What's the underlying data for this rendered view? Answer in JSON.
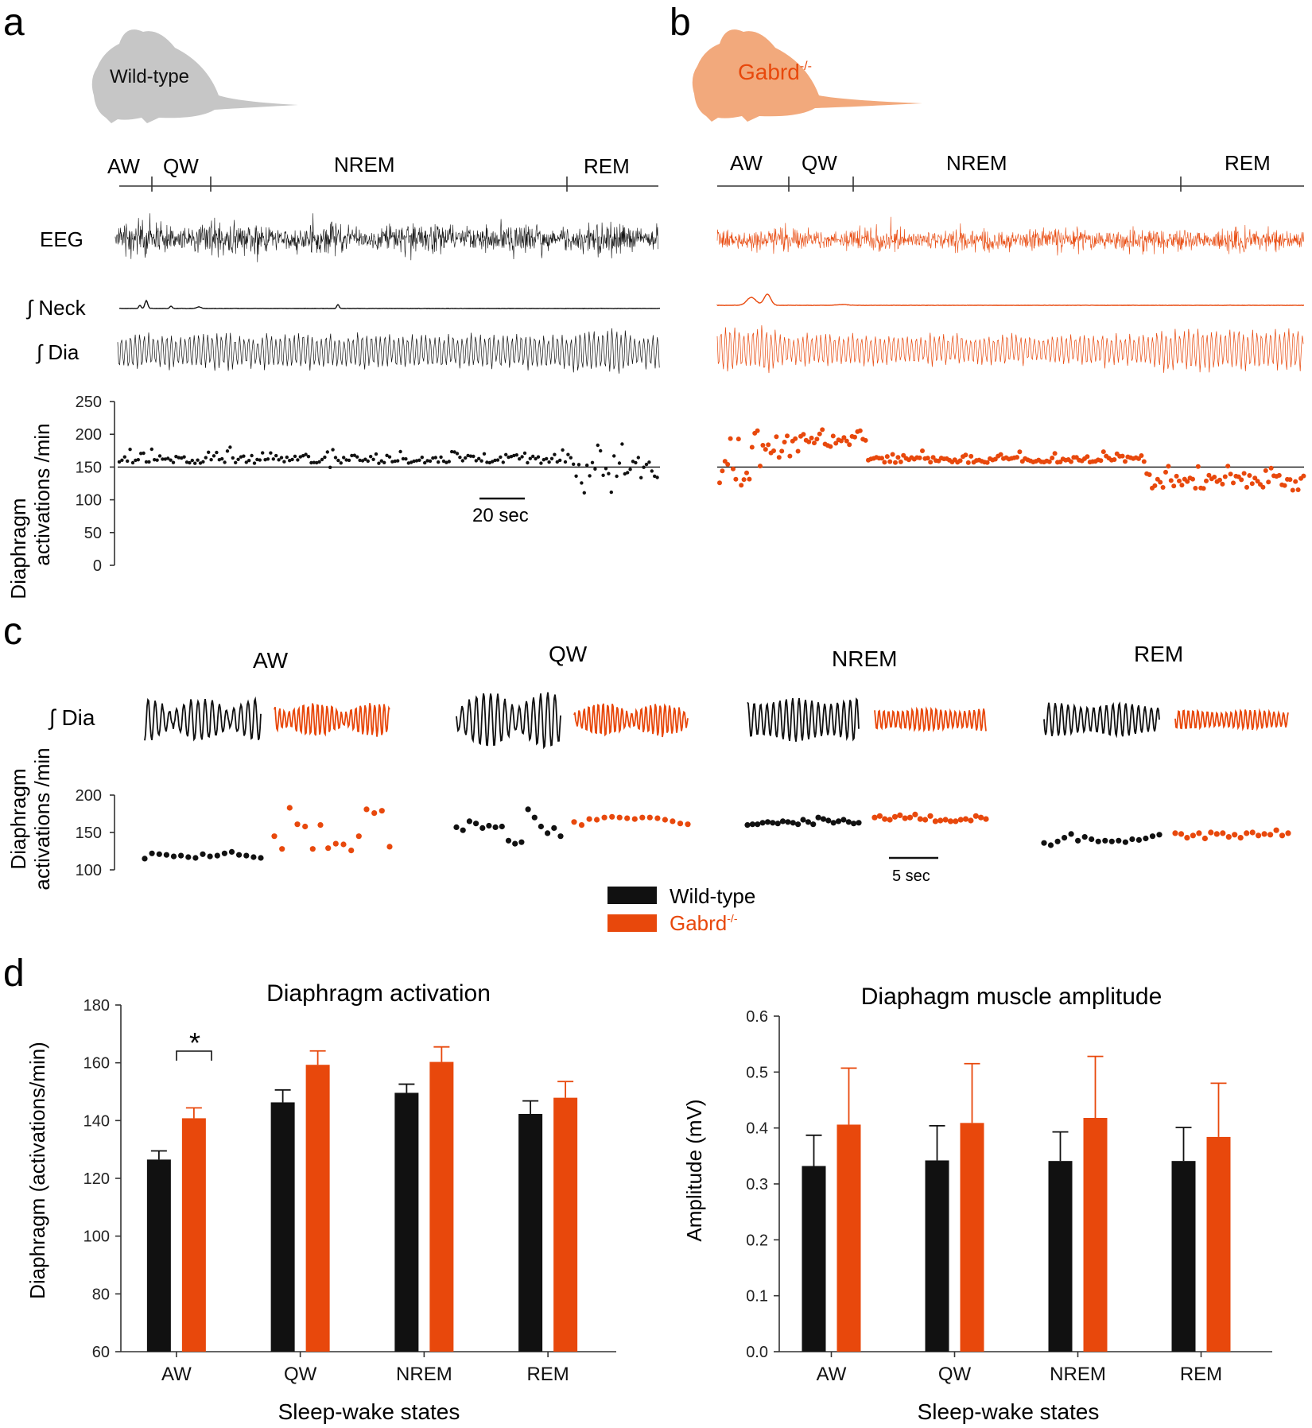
{
  "panel_letters": {
    "a": "a",
    "b": "b",
    "c": "c",
    "d": "d"
  },
  "colors": {
    "wildtype": "#111111",
    "knockout": "#e8480c",
    "wt_mouse": "#c6c6c6",
    "ko_mouse": "#f2a97c",
    "axis": "#333333"
  },
  "mice": {
    "wt_label": "Wild-type",
    "ko_label_base": "Gabrd",
    "ko_label_sup": "-/-"
  },
  "states": [
    "AW",
    "QW",
    "NREM",
    "REM"
  ],
  "trace_labels": {
    "eeg": "EEG",
    "neck": "∫ Neck",
    "dia": "∫ Dia"
  },
  "rate_axis_label": [
    "Diaphragm",
    "activations /min"
  ],
  "scale_bars": {
    "panel_a": "20 sec",
    "panel_c": "5 sec"
  },
  "legend": {
    "wt": "Wild-type",
    "ko_base": "Gabrd",
    "ko_sup": "-/-"
  },
  "significance": "*",
  "chart_data": [
    {
      "id": "panel-a-rate",
      "type": "scatter",
      "series_name": "Wild-type",
      "ylim": [
        0,
        250
      ],
      "yticks": [
        0,
        50,
        100,
        150,
        200,
        250
      ],
      "reference_line": 150,
      "baseline_rate": 160
    },
    {
      "id": "panel-b-rate",
      "type": "scatter",
      "series_name": "Gabrd-/-",
      "ylim": [
        0,
        250
      ],
      "reference_line": 150,
      "baseline_rate": 160
    },
    {
      "id": "panel-c-rates",
      "type": "scatter",
      "ylim": [
        100,
        200
      ],
      "yticks": [
        100,
        150,
        200
      ],
      "series": [
        {
          "state": "AW",
          "wt": [
            115,
            122,
            121,
            120,
            118,
            119,
            117,
            116,
            121,
            118,
            119,
            122,
            124,
            120,
            119,
            117,
            116
          ],
          "ko": [
            145,
            128,
            183,
            161,
            158,
            128,
            160,
            129,
            135,
            134,
            126,
            145,
            181,
            176,
            179,
            131
          ]
        },
        {
          "state": "QW",
          "wt": [
            157,
            153,
            165,
            162,
            156,
            159,
            157,
            158,
            139,
            135,
            137,
            181,
            170,
            158,
            149,
            156,
            145
          ],
          "ko": [
            164,
            160,
            168,
            167,
            170,
            171,
            170,
            169,
            168,
            170,
            170,
            169,
            167,
            165,
            162,
            161
          ]
        },
        {
          "state": "NREM",
          "wt": [
            160,
            161,
            161,
            163,
            164,
            163,
            162,
            165,
            164,
            163,
            161,
            167,
            164,
            161,
            170,
            168,
            166,
            163,
            165,
            167,
            164,
            162,
            163
          ],
          "ko": [
            170,
            172,
            168,
            167,
            171,
            173,
            169,
            170,
            174,
            168,
            167,
            172,
            165,
            166,
            167,
            165,
            165,
            167,
            168,
            166,
            172,
            170,
            168
          ]
        },
        {
          "state": "REM",
          "wt": [
            136,
            133,
            138,
            143,
            148,
            139,
            144,
            141,
            138,
            139,
            138,
            139,
            137,
            141,
            140,
            142,
            145,
            147
          ],
          "ko": [
            149,
            148,
            143,
            146,
            149,
            142,
            150,
            148,
            149,
            144,
            147,
            143,
            149,
            150,
            146,
            148,
            147,
            153,
            146,
            149
          ]
        }
      ]
    },
    {
      "id": "panel-d-activation",
      "type": "bar",
      "title": "Diaphragm activation",
      "xlabel": "Sleep-wake states",
      "ylabel": "Diaphragm (activations/min)",
      "categories": [
        "AW",
        "QW",
        "NREM",
        "REM"
      ],
      "ylim": [
        60,
        180
      ],
      "yticks": [
        60,
        80,
        100,
        120,
        140,
        160,
        180
      ],
      "series": [
        {
          "name": "Wild-type",
          "values": [
            126.5,
            146.3,
            149.6,
            142.3
          ],
          "errors": [
            3.0,
            4.3,
            3.0,
            4.5
          ]
        },
        {
          "name": "Gabrd-/-",
          "values": [
            140.8,
            159.3,
            160.3,
            147.9
          ],
          "errors": [
            3.6,
            4.8,
            5.2,
            5.6
          ]
        }
      ]
    },
    {
      "id": "panel-d-amplitude",
      "type": "bar",
      "title": "Diaphagm muscle amplitude",
      "xlabel": "Sleep-wake states",
      "ylabel": "Amplitude (mV)",
      "categories": [
        "AW",
        "QW",
        "NREM",
        "REM"
      ],
      "ylim": [
        0,
        0.6
      ],
      "yticks": [
        "0.0",
        "0.1",
        "0.2",
        "0.3",
        "0.4",
        "0.5",
        "0.6"
      ],
      "series": [
        {
          "name": "Wild-type",
          "values": [
            0.332,
            0.342,
            0.341,
            0.341
          ],
          "errors": [
            0.055,
            0.062,
            0.052,
            0.06
          ]
        },
        {
          "name": "Gabrd-/-",
          "values": [
            0.406,
            0.409,
            0.418,
            0.384
          ],
          "errors": [
            0.101,
            0.106,
            0.11,
            0.096
          ]
        }
      ]
    }
  ]
}
